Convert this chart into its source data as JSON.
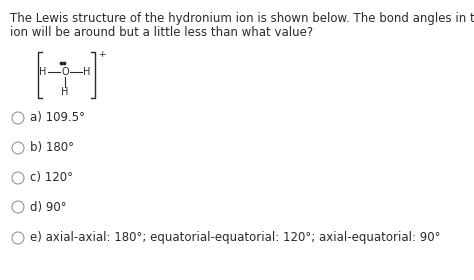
{
  "background_color": "#ffffff",
  "text_color": "#2a2a2a",
  "question_line1": "The Lewis structure of the hydronium ion is shown below. The bond angles in this",
  "question_line2": "ion will be around but a little less than what value?",
  "question_fontsize": 8.5,
  "options": [
    "a) 109.5°",
    "b) 180°",
    "c) 120°",
    "d) 90°",
    "e) axial-axial: 180°; equatorial-equatorial: 120°; axial-equatorial: 90°"
  ],
  "option_fontsize": 8.5,
  "lewis_fontsize": 7.0,
  "circle_r": 6.0
}
